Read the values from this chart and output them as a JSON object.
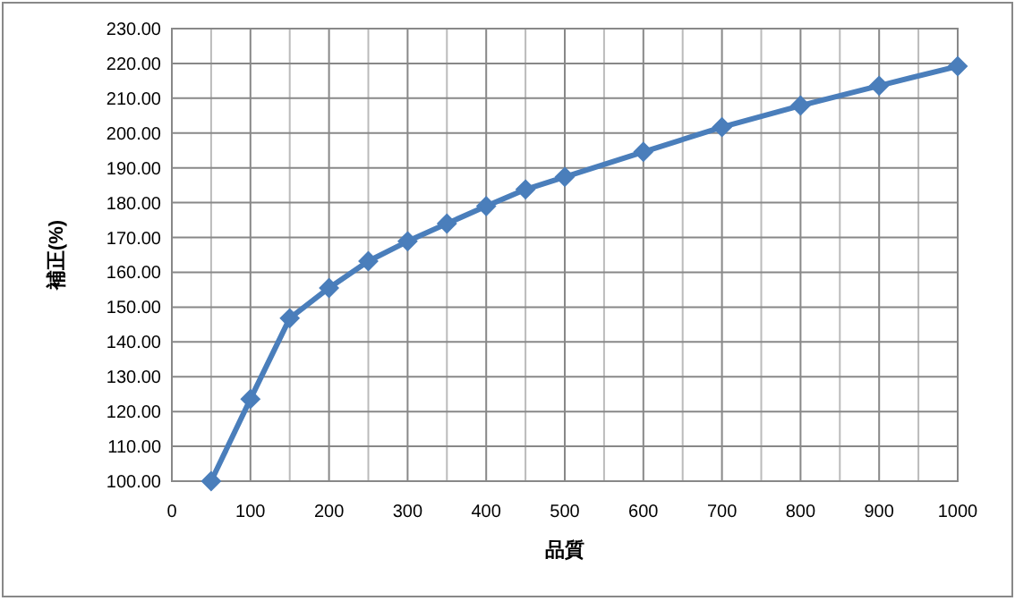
{
  "chart_data": {
    "type": "line",
    "xlabel": "品質",
    "ylabel": "補正(%)",
    "x": [
      50,
      100,
      150,
      200,
      250,
      300,
      350,
      400,
      450,
      500,
      600,
      700,
      800,
      900,
      1000
    ],
    "series": [
      {
        "color": "#4a7ebb",
        "values": [
          100,
          123.6,
          146.8,
          155.5,
          163.2,
          168.9,
          174,
          179,
          183.8,
          187.4,
          194.6,
          201.7,
          207.9,
          213.6,
          219.2
        ]
      }
    ],
    "xlim": [
      0,
      1000
    ],
    "xticks": [
      0,
      100,
      200,
      300,
      400,
      500,
      600,
      700,
      800,
      900,
      1000
    ],
    "ylim": [
      100,
      230
    ],
    "yticks": [
      {
        "value": 100,
        "label": "100.00"
      },
      {
        "value": 110,
        "label": "110.00"
      },
      {
        "value": 120,
        "label": "120.00"
      },
      {
        "value": 130,
        "label": "130.00"
      },
      {
        "value": 140,
        "label": "140.00"
      },
      {
        "value": 150,
        "label": "150.00"
      },
      {
        "value": 160,
        "label": "160.00"
      },
      {
        "value": 170,
        "label": "170.00"
      },
      {
        "value": 180,
        "label": "180.00"
      },
      {
        "value": 190,
        "label": "190.00"
      },
      {
        "value": 200,
        "label": "200.00"
      },
      {
        "value": 210,
        "label": "210.00"
      },
      {
        "value": 220,
        "label": "220.00"
      },
      {
        "value": 230,
        "label": "230.00"
      }
    ],
    "grid": true,
    "marker": "diamond",
    "line_style": "solid"
  }
}
